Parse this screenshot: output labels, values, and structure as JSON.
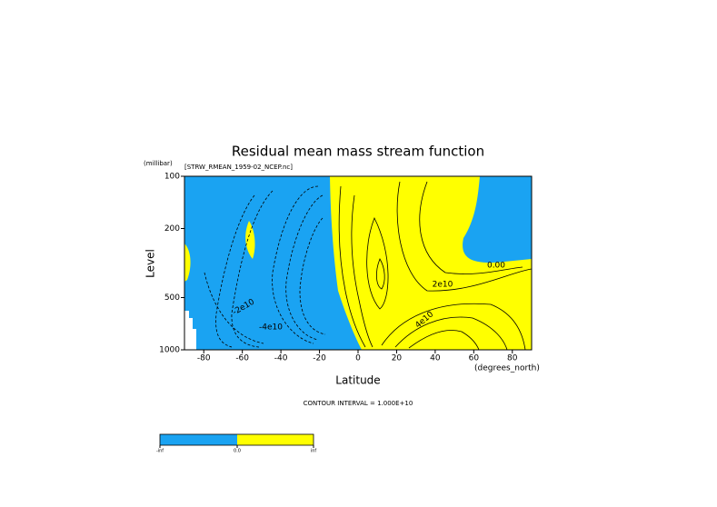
{
  "chart_data": {
    "type": "contour",
    "title": "Residual mean mass stream function",
    "subtitle": "[STRW_RMEAN_1959-02_NCEP.nc]",
    "y_unit": "(millibar)",
    "y_label": "Level",
    "x_label": "Latitude",
    "x_unit": "(degrees_north)",
    "footer": "CONTOUR INTERVAL = 1.000E+10",
    "xlim": [
      -90,
      90
    ],
    "xticks": [
      -80,
      -60,
      -40,
      -20,
      0,
      20,
      40,
      60,
      80
    ],
    "ylim": [
      1000,
      100
    ],
    "yticks": [
      100,
      200,
      500,
      1000
    ],
    "ylog": true,
    "fill_colors": [
      "#1aa3f2",
      "#ffff00"
    ],
    "contour_labels": [
      "-2e10",
      "-4e10",
      "2e10",
      "4e10",
      "0.00"
    ],
    "colorbar_labels": [
      "-inf",
      "0.0",
      "inf"
    ]
  }
}
